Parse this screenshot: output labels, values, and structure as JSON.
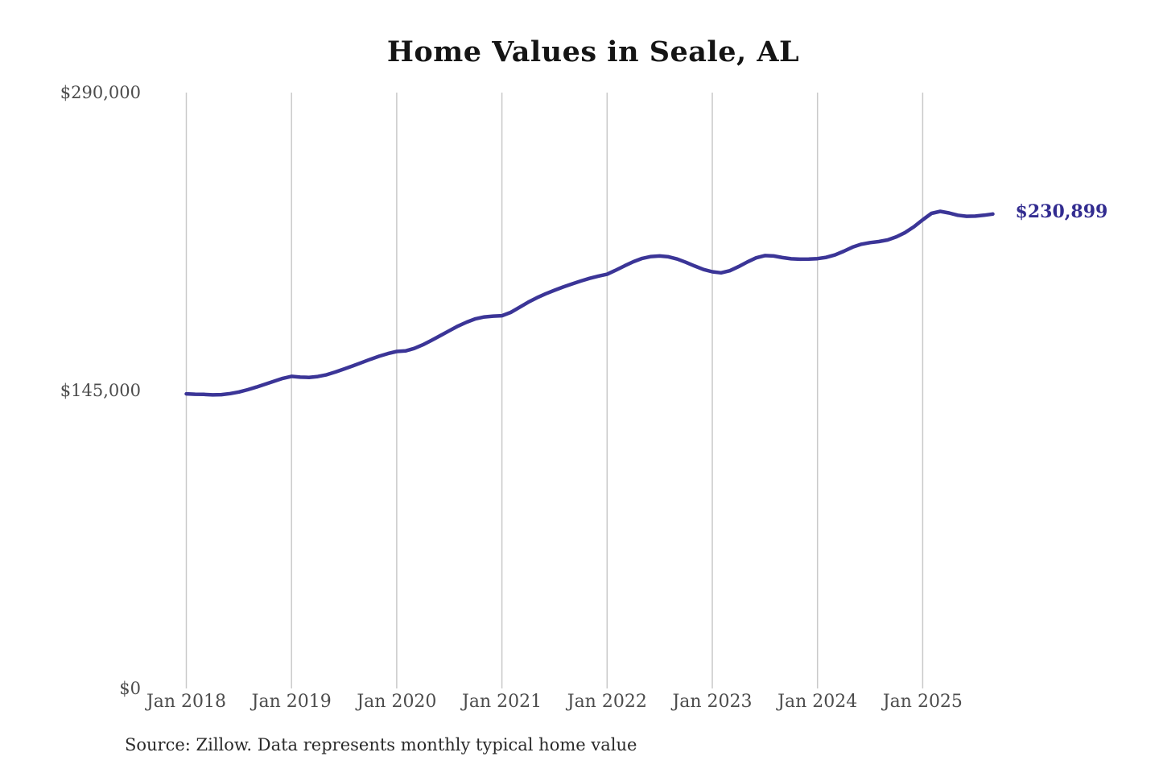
{
  "chart_data": {
    "type": "line",
    "title": "Home Values in Seale, AL",
    "source_note": "Source: Zillow. Data represents monthly typical home value",
    "annotation": "$230,899",
    "end_value": 230899,
    "xlabel": "",
    "ylabel": "",
    "ylim": [
      0,
      290000
    ],
    "y_ticks": [
      0,
      145000,
      290000
    ],
    "y_tick_labels": [
      "$0",
      "$145,000",
      "$290,000"
    ],
    "x_tick_labels": [
      "Jan 2018",
      "Jan 2019",
      "Jan 2020",
      "Jan 2021",
      "Jan 2022",
      "Jan 2023",
      "Jan 2024",
      "Jan 2025"
    ],
    "x_start_month": "2018-01",
    "x_end_month": "2025-09",
    "points_per_year": 12,
    "grid": "vertical-only",
    "legend": "none",
    "series": [
      {
        "name": "Monthly typical home value",
        "values": [
          143400,
          143200,
          143100,
          142900,
          143000,
          143500,
          144300,
          145400,
          146700,
          148100,
          149500,
          150900,
          151900,
          151500,
          151400,
          151800,
          152700,
          154000,
          155500,
          157000,
          158600,
          160200,
          161700,
          163000,
          164000,
          164300,
          165500,
          167300,
          169500,
          171800,
          174100,
          176400,
          178300,
          179900,
          180800,
          181200,
          181400,
          183000,
          185500,
          188000,
          190200,
          192100,
          193800,
          195400,
          196900,
          198300,
          199600,
          200700,
          201600,
          203600,
          205700,
          207700,
          209300,
          210200,
          210500,
          210100,
          209000,
          207400,
          205600,
          203900,
          202800,
          202300,
          203300,
          205300,
          207600,
          209600,
          210700,
          210500,
          209700,
          209100,
          208900,
          209000,
          209200,
          209800,
          211000,
          212800,
          214800,
          216200,
          217000,
          217500,
          218300,
          219800,
          221900,
          224700,
          228100,
          231200,
          232200,
          231400,
          230300,
          229800,
          229900,
          230300,
          230899
        ]
      }
    ],
    "colors": {
      "line": "#3b3597",
      "annotation": "#322c90",
      "grid": "#c9c9c9",
      "axis_text": "#4c4c4c",
      "title": "#151515",
      "source_text": "#2a2a2a"
    }
  }
}
